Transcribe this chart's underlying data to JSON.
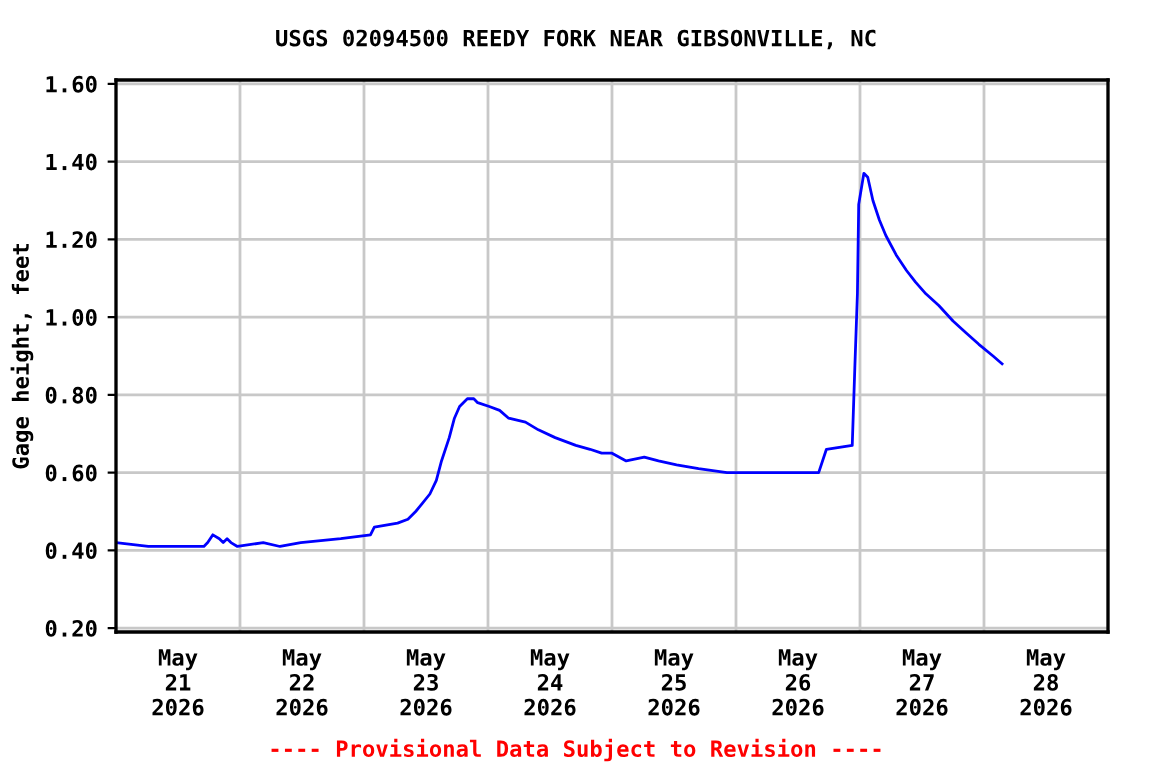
{
  "chart_data": {
    "type": "line",
    "title": "USGS 02094500 REEDY FORK NEAR GIBSONVILLE, NC",
    "ylabel": "Gage height, feet",
    "annotations": [
      "---- Provisional Data Subject to Revision ----"
    ],
    "x": [
      "2026-05-21T00:00",
      "2026-05-21T06:15",
      "2026-05-21T17:00",
      "2026-05-21T17:45",
      "2026-05-21T18:45",
      "2026-05-21T20:00",
      "2026-05-21T20:45",
      "2026-05-21T21:30",
      "2026-05-21T22:15",
      "2026-05-21T23:30",
      "2026-05-22T04:30",
      "2026-05-22T07:45",
      "2026-05-22T11:45",
      "2026-05-22T19:30",
      "2026-05-23T01:15",
      "2026-05-23T02:00",
      "2026-05-23T06:30",
      "2026-05-23T08:30",
      "2026-05-23T10:00",
      "2026-05-23T11:15",
      "2026-05-23T12:45",
      "2026-05-23T14:00",
      "2026-05-23T15:00",
      "2026-05-23T16:30",
      "2026-05-23T17:30",
      "2026-05-23T18:30",
      "2026-05-23T20:00",
      "2026-05-23T21:15",
      "2026-05-23T22:00",
      "2026-05-24T00:15",
      "2026-05-24T02:15",
      "2026-05-24T04:00",
      "2026-05-24T07:15",
      "2026-05-24T09:45",
      "2026-05-24T13:00",
      "2026-05-24T17:00",
      "2026-05-24T19:45",
      "2026-05-24T22:00",
      "2026-05-25T00:00",
      "2026-05-25T02:45",
      "2026-05-25T06:15",
      "2026-05-25T09:00",
      "2026-05-25T12:30",
      "2026-05-25T16:45",
      "2026-05-25T22:15",
      "2026-05-26T16:00",
      "2026-05-26T17:30",
      "2026-05-26T22:30",
      "2026-05-26T23:00",
      "2026-05-26T23:30",
      "2026-05-26T23:45",
      "2026-05-27T00:45",
      "2026-05-27T01:30",
      "2026-05-27T02:30",
      "2026-05-27T03:45",
      "2026-05-27T05:00",
      "2026-05-27T07:00",
      "2026-05-27T09:00",
      "2026-05-27T10:45",
      "2026-05-27T12:45",
      "2026-05-27T15:15",
      "2026-05-27T18:00",
      "2026-05-27T20:30",
      "2026-05-27T23:00",
      "2026-05-28T01:45",
      "2026-05-28T03:30"
    ],
    "series": [
      {
        "color": "#0000ff",
        "values": [
          0.42,
          0.41,
          0.41,
          0.42,
          0.44,
          0.43,
          0.42,
          0.43,
          0.42,
          0.41,
          0.42,
          0.41,
          0.42,
          0.43,
          0.44,
          0.46,
          0.47,
          0.48,
          0.5,
          0.52,
          0.545,
          0.58,
          0.63,
          0.69,
          0.74,
          0.77,
          0.79,
          0.79,
          0.78,
          0.77,
          0.76,
          0.74,
          0.73,
          0.71,
          0.69,
          0.67,
          0.66,
          0.65,
          0.65,
          0.63,
          0.64,
          0.63,
          0.62,
          0.61,
          0.6,
          0.6,
          0.66,
          0.67,
          0.87,
          1.06,
          1.29,
          1.37,
          1.36,
          1.3,
          1.25,
          1.21,
          1.16,
          1.12,
          1.09,
          1.06,
          1.03,
          0.99,
          0.96,
          0.93,
          0.9,
          0.88
        ]
      }
    ],
    "xlim": [
      "2026-05-21T00:00",
      "2026-05-29T00:00"
    ],
    "xticks": [
      {
        "value": "2026-05-21T12:00",
        "label": "May\n21\n2026"
      },
      {
        "value": "2026-05-22T00:00",
        "label": null
      },
      {
        "value": "2026-05-22T12:00",
        "label": "May\n22\n2026"
      },
      {
        "value": "2026-05-23T00:00",
        "label": null
      },
      {
        "value": "2026-05-23T12:00",
        "label": "May\n23\n2026"
      },
      {
        "value": "2026-05-24T00:00",
        "label": null
      },
      {
        "value": "2026-05-24T12:00",
        "label": "May\n24\n2026"
      },
      {
        "value": "2026-05-25T00:00",
        "label": null
      },
      {
        "value": "2026-05-25T12:00",
        "label": "May\n25\n2026"
      },
      {
        "value": "2026-05-26T00:00",
        "label": null
      },
      {
        "value": "2026-05-26T12:00",
        "label": "May\n26\n2026"
      },
      {
        "value": "2026-05-27T00:00",
        "label": null
      },
      {
        "value": "2026-05-27T12:00",
        "label": "May\n27\n2026"
      },
      {
        "value": "2026-05-28T00:00",
        "label": null
      },
      {
        "value": "2026-05-28T12:00",
        "label": "May\n28\n2026"
      }
    ],
    "ylim": [
      0.19,
      1.61
    ],
    "yticks": [
      {
        "value": 0.2,
        "label": "0.20"
      },
      {
        "value": 0.4,
        "label": "0.40"
      },
      {
        "value": 0.6,
        "label": "0.60"
      },
      {
        "value": 0.8,
        "label": "0.80"
      },
      {
        "value": 1.0,
        "label": "1.00"
      },
      {
        "value": 1.2,
        "label": "1.20"
      },
      {
        "value": 1.4,
        "label": "1.40"
      },
      {
        "value": 1.6,
        "label": "1.60"
      }
    ],
    "grid": true,
    "legend": false
  }
}
